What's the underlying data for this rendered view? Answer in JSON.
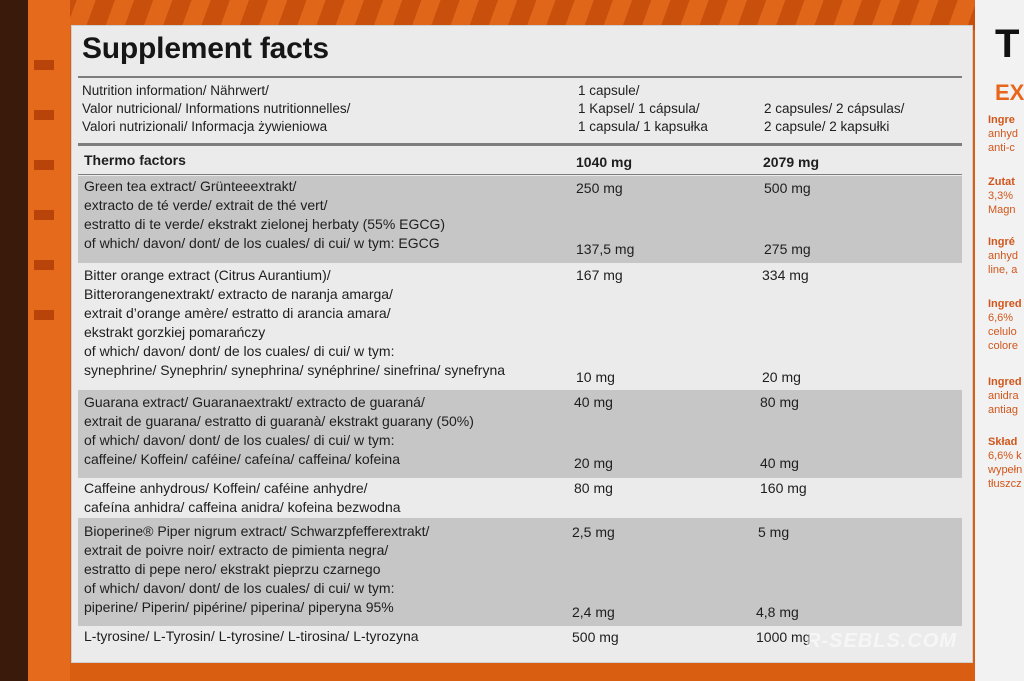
{
  "title": "Supplement facts",
  "header": {
    "nutrition": [
      "Nutrition information/ Nährwert/",
      "Valor nutricional/ Informations nutritionnelles/",
      "Valori nutrizionali/ Informacja żywieniowa"
    ],
    "col1": [
      "1 capsule/",
      "1 Kapsel/ 1 cápsula/",
      "1 capsula/ 1 kapsułka"
    ],
    "col2": [
      "2 capsules/ 2 cápsulas/",
      "2 capsule/ 2 kapsułki"
    ]
  },
  "thermo": {
    "label": "Thermo factors",
    "v1": "1040 mg",
    "v2": "2079 mg"
  },
  "rows": [
    {
      "lines": [
        "Green tea extract/ Grünteeextrakt/",
        "extracto de té verde/ extrait de thé vert/",
        "estratto di te verde/ ekstrakt zielonej herbaty (55% EGCG)",
        "of which/ davon/ dont/ de los cuales/ di cui/ w tym: EGCG"
      ],
      "v1": "250 mg",
      "v2": "500 mg",
      "s1": "137,5 mg",
      "s2": "275 mg"
    },
    {
      "lines": [
        "Bitter orange extract (Citrus Aurantium)/",
        "Bitterorangenextrakt/ extracto de naranja amarga/",
        "extrait d’orange amère/ estratto di arancia amara/",
        "ekstrakt gorzkiej pomarańczy",
        "of which/ davon/ dont/ de los cuales/ di cui/ w tym:",
        "synephrine/ Synephrin/ synephrina/ synéphrine/ sinefrina/ synefryna"
      ],
      "v1": "167 mg",
      "v2": "334 mg",
      "s1": "10 mg",
      "s2": "20 mg"
    },
    {
      "lines": [
        "Guarana extract/ Guaranaextrakt/ extracto de guaraná/",
        "extrait de guarana/ estratto di guaranà/ ekstrakt guarany (50%)",
        "of which/ davon/ dont/ de los cuales/ di cui/ w tym:",
        "caffeine/ Koffein/ caféine/ cafeína/ caffeina/ kofeina"
      ],
      "v1": "40 mg",
      "v2": "80 mg",
      "s1": "20 mg",
      "s2": "40 mg"
    },
    {
      "lines": [
        "Caffeine anhydrous/ Koffein/ caféine anhydre/",
        "cafeína anhidra/ caffeina anidra/ kofeina bezwodna"
      ],
      "v1": "80 mg",
      "v2": "160 mg"
    },
    {
      "lines": [
        "Bioperine® Piper nigrum extract/ Schwarzpfefferextrakt/",
        "extrait de poivre noir/ extracto de pimienta negra/",
        "estratto di pepe nero/ ekstrakt pieprzu czarnego",
        "of which/ davon/ dont/ de los cuales/ di cui/ w tym:",
        "piperine/ Piperin/ pipérine/ piperina/ piperyna 95%"
      ],
      "v1": "2,5 mg",
      "v2": "5 mg",
      "s1": "2,4 mg",
      "s2": "4,8 mg"
    },
    {
      "lines": [
        "L-tyrosine/ L-Tyrosin/ L-tyrosine/ L-tirosina/ L-tyrozyna"
      ],
      "v1": "500 mg",
      "v2": "1000 mg"
    }
  ],
  "side": {
    "big": "T",
    "sub": "EX",
    "frags": [
      [
        "Ingre",
        "anhyd",
        "anti-c"
      ],
      [
        "Zutat",
        "3,3%",
        "Magn"
      ],
      [
        "Ingré",
        "anhyd",
        "line, a"
      ],
      [
        "Ingred",
        "6,6% ",
        "celulo",
        "colore"
      ],
      [
        "Ingred",
        "anidra",
        "antiag"
      ],
      [
        "Skład",
        "6,6% k",
        "wypełn",
        "tłuszcz"
      ]
    ]
  },
  "watermark": "R-SEBLS.COM"
}
